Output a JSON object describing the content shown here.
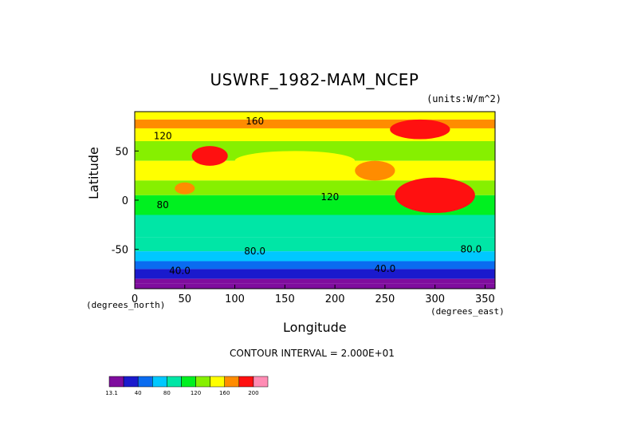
{
  "chart_data": {
    "type": "heatmap",
    "title": "USWRF_1982-MAM_NCEP",
    "units": "(units:W/m^2)",
    "xlabel": "Longitude",
    "ylabel": "Latitude",
    "x_unit_left": "(degrees_north)",
    "x_unit_right": "(degrees_east)",
    "xlim": [
      0,
      360
    ],
    "ylim": [
      -90,
      90
    ],
    "xticks": [
      0,
      50,
      100,
      150,
      200,
      250,
      300,
      350
    ],
    "yticks": [
      -50,
      0,
      50
    ],
    "contour_interval": "CONTOUR INTERVAL = 2.000E+01",
    "contour_labels": [
      {
        "text": "160",
        "lon": 120,
        "lat": 77
      },
      {
        "text": "120",
        "lon": 28,
        "lat": 62
      },
      {
        "text": "120",
        "lon": 195,
        "lat": 0
      },
      {
        "text": "80",
        "lon": 28,
        "lat": -8
      },
      {
        "text": "80.0",
        "lon": 120,
        "lat": -55
      },
      {
        "text": "80.0",
        "lon": 336,
        "lat": -53
      },
      {
        "text": "40.0",
        "lon": 45,
        "lat": -75
      },
      {
        "text": "40.0",
        "lon": 250,
        "lat": -73
      }
    ],
    "colorbar": {
      "colors": [
        "#7f0d9e",
        "#1a1acd",
        "#0a6cf0",
        "#00c8ff",
        "#00e6a6",
        "#00f020",
        "#86f000",
        "#ffff00",
        "#ff8c00",
        "#ff1010",
        "#ff8cb4"
      ],
      "tick_labels": [
        "13.1",
        "40",
        "80",
        "120",
        "160",
        "200"
      ]
    }
  }
}
